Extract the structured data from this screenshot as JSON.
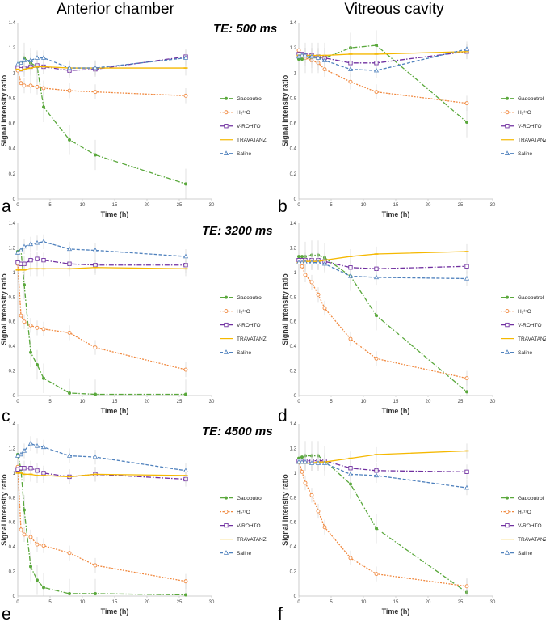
{
  "figure": {
    "column_titles": [
      "Anterior chamber",
      "Vitreous cavity"
    ],
    "te_labels": [
      "TE: 500 ms",
      "TE: 3200 ms",
      "TE: 4500 ms"
    ]
  },
  "colors": {
    "Gadobutrol": "#5aa83c",
    "H2O17": "#f0883e",
    "V-ROHTO": "#7030a0",
    "TRAVATANZ": "#f5b800",
    "Saline": "#4f81bd"
  },
  "chart_data": [
    {
      "panel": "a",
      "type": "line",
      "region": "Anterior chamber",
      "te": "TE: 500 ms",
      "xlabel": "Time (h)",
      "ylabel": "Signal intensity ratio",
      "xlim": [
        0,
        30
      ],
      "ylim": [
        0,
        1.4
      ],
      "xticks": [
        0,
        5,
        10,
        15,
        20,
        25,
        30
      ],
      "yticks": [
        0,
        0.2,
        0.4,
        0.6,
        0.8,
        1.0,
        1.2,
        1.4
      ],
      "legend": [
        "Gadobutrol",
        "H₂¹⁷O",
        "V-ROHTO",
        "TRAVATANZ",
        "Saline"
      ],
      "series": [
        {
          "name": "Gadobutrol",
          "x": [
            0,
            0.5,
            1,
            2,
            3,
            4,
            8,
            12,
            26
          ],
          "values": [
            1.05,
            1.08,
            1.12,
            1.08,
            1.05,
            0.73,
            0.47,
            0.35,
            0.12
          ]
        },
        {
          "name": "H₂¹⁷O",
          "x": [
            0,
            0.5,
            1,
            2,
            3,
            4,
            8,
            12,
            26
          ],
          "values": [
            1.02,
            0.92,
            0.9,
            0.9,
            0.89,
            0.88,
            0.86,
            0.85,
            0.82
          ]
        },
        {
          "name": "V-ROHTO",
          "x": [
            0,
            0.5,
            1,
            2,
            3,
            4,
            8,
            12,
            26
          ],
          "values": [
            1.04,
            1.03,
            1.04,
            1.05,
            1.06,
            1.05,
            1.02,
            1.03,
            1.13
          ]
        },
        {
          "name": "TRAVATANZ",
          "x": [
            0,
            0.5,
            1,
            2,
            3,
            4,
            8,
            12,
            26
          ],
          "values": [
            1.03,
            1.02,
            1.03,
            1.04,
            1.05,
            1.05,
            1.04,
            1.04,
            1.04
          ]
        },
        {
          "name": "Saline",
          "x": [
            0,
            0.5,
            1,
            2,
            3,
            4,
            8,
            12,
            26
          ],
          "values": [
            1.07,
            1.08,
            1.1,
            1.1,
            1.12,
            1.12,
            1.04,
            1.04,
            1.12
          ]
        }
      ]
    },
    {
      "panel": "b",
      "type": "line",
      "region": "Vitreous cavity",
      "te": "TE: 500 ms",
      "xlabel": "Time (h)",
      "ylabel": "Signal intensity ratio",
      "xlim": [
        0,
        30
      ],
      "ylim": [
        0,
        1.4
      ],
      "xticks": [
        0,
        5,
        10,
        15,
        20,
        25,
        30
      ],
      "yticks": [
        0,
        0.2,
        0.4,
        0.6,
        0.8,
        1.0,
        1.2,
        1.4
      ],
      "legend": [
        "Gadobutrol",
        "H₂¹⁷O",
        "V-ROHTO",
        "TRAVATANZ",
        "Saline"
      ],
      "series": [
        {
          "name": "Gadobutrol",
          "x": [
            0,
            0.5,
            1,
            2,
            3,
            4,
            8,
            12,
            26
          ],
          "values": [
            1.11,
            1.11,
            1.12,
            1.12,
            1.12,
            1.12,
            1.2,
            1.22,
            0.61
          ]
        },
        {
          "name": "H₂¹⁷O",
          "x": [
            0,
            0.5,
            1,
            2,
            3,
            4,
            8,
            12,
            26
          ],
          "values": [
            1.18,
            1.15,
            1.12,
            1.1,
            1.08,
            1.03,
            0.93,
            0.85,
            0.76
          ]
        },
        {
          "name": "V-ROHTO",
          "x": [
            0,
            0.5,
            1,
            2,
            3,
            4,
            8,
            12,
            26
          ],
          "values": [
            1.15,
            1.15,
            1.14,
            1.14,
            1.13,
            1.12,
            1.08,
            1.08,
            1.17
          ]
        },
        {
          "name": "TRAVATANZ",
          "x": [
            0,
            0.5,
            1,
            2,
            3,
            4,
            8,
            12,
            26
          ],
          "values": [
            1.14,
            1.14,
            1.14,
            1.14,
            1.14,
            1.14,
            1.15,
            1.15,
            1.17
          ]
        },
        {
          "name": "Saline",
          "x": [
            0,
            0.5,
            1,
            2,
            3,
            4,
            8,
            12,
            26
          ],
          "values": [
            1.13,
            1.14,
            1.14,
            1.13,
            1.12,
            1.1,
            1.03,
            1.02,
            1.19
          ]
        }
      ]
    },
    {
      "panel": "c",
      "type": "line",
      "region": "Anterior chamber",
      "te": "TE: 3200 ms",
      "xlabel": "Time (h)",
      "ylabel": "Signal intensity ratio",
      "xlim": [
        0,
        30
      ],
      "ylim": [
        0,
        1.4
      ],
      "xticks": [
        0,
        5,
        10,
        15,
        20,
        25,
        30
      ],
      "yticks": [
        0,
        0.2,
        0.4,
        0.6,
        0.8,
        1.0,
        1.2,
        1.4
      ],
      "legend": [
        "Gadobutrol",
        "H₂¹⁷O",
        "V-ROHTO",
        "TRAVATANZ",
        "Saline"
      ],
      "series": [
        {
          "name": "Gadobutrol",
          "x": [
            0,
            0.5,
            1,
            2,
            3,
            4,
            8,
            12,
            26
          ],
          "values": [
            1.17,
            1.18,
            0.9,
            0.35,
            0.25,
            0.14,
            0.02,
            0.01,
            0.01
          ]
        },
        {
          "name": "H₂¹⁷O",
          "x": [
            0,
            0.5,
            1,
            2,
            3,
            4,
            8,
            12,
            26
          ],
          "values": [
            1.07,
            0.65,
            0.6,
            0.57,
            0.55,
            0.54,
            0.51,
            0.39,
            0.21
          ]
        },
        {
          "name": "V-ROHTO",
          "x": [
            0,
            0.5,
            1,
            2,
            3,
            4,
            8,
            12,
            26
          ],
          "values": [
            1.08,
            1.07,
            1.07,
            1.1,
            1.11,
            1.1,
            1.07,
            1.06,
            1.06
          ]
        },
        {
          "name": "TRAVATANZ",
          "x": [
            0,
            0.5,
            1,
            2,
            3,
            4,
            8,
            12,
            26
          ],
          "values": [
            1.02,
            1.02,
            1.02,
            1.03,
            1.03,
            1.03,
            1.03,
            1.04,
            1.03
          ]
        },
        {
          "name": "Saline",
          "x": [
            0,
            0.5,
            1,
            2,
            3,
            4,
            8,
            12,
            26
          ],
          "values": [
            1.16,
            1.18,
            1.21,
            1.23,
            1.24,
            1.25,
            1.19,
            1.18,
            1.13
          ]
        }
      ]
    },
    {
      "panel": "d",
      "type": "line",
      "region": "Vitreous cavity",
      "te": "TE: 3200 ms",
      "xlabel": "Time (h)",
      "ylabel": "Signal intensity ratio",
      "xlim": [
        0,
        30
      ],
      "ylim": [
        0,
        1.4
      ],
      "xticks": [
        0,
        5,
        10,
        15,
        20,
        25,
        30
      ],
      "yticks": [
        0,
        0.2,
        0.4,
        0.6,
        0.8,
        1.0,
        1.2,
        1.4
      ],
      "legend": [
        "Gadobutrol",
        "H₂¹⁷O",
        "V-ROHTO",
        "TRAVATANZ",
        "Saline"
      ],
      "series": [
        {
          "name": "Gadobutrol",
          "x": [
            0,
            0.5,
            1,
            2,
            3,
            4,
            8,
            12,
            26
          ],
          "values": [
            1.13,
            1.13,
            1.13,
            1.14,
            1.14,
            1.12,
            0.97,
            0.65,
            0.03
          ]
        },
        {
          "name": "H₂¹⁷O",
          "x": [
            0,
            0.5,
            1,
            2,
            3,
            4,
            8,
            12,
            26
          ],
          "values": [
            1.1,
            1.05,
            0.98,
            0.92,
            0.82,
            0.71,
            0.46,
            0.3,
            0.14
          ]
        },
        {
          "name": "V-ROHTO",
          "x": [
            0,
            0.5,
            1,
            2,
            3,
            4,
            8,
            12,
            26
          ],
          "values": [
            1.1,
            1.1,
            1.1,
            1.1,
            1.1,
            1.09,
            1.04,
            1.03,
            1.05
          ]
        },
        {
          "name": "TRAVATANZ",
          "x": [
            0,
            0.5,
            1,
            2,
            3,
            4,
            8,
            12,
            26
          ],
          "values": [
            1.08,
            1.08,
            1.09,
            1.09,
            1.09,
            1.1,
            1.13,
            1.15,
            1.17
          ]
        },
        {
          "name": "Saline",
          "x": [
            0,
            0.5,
            1,
            2,
            3,
            4,
            8,
            12,
            26
          ],
          "values": [
            1.08,
            1.08,
            1.08,
            1.08,
            1.08,
            1.07,
            0.97,
            0.96,
            0.95
          ]
        }
      ]
    },
    {
      "panel": "e",
      "type": "line",
      "region": "Anterior chamber",
      "te": "TE: 4500 ms",
      "xlabel": "Time (h)",
      "ylabel": "Signal intensity ratio",
      "xlim": [
        0,
        30
      ],
      "ylim": [
        0,
        1.4
      ],
      "xticks": [
        0,
        5,
        10,
        15,
        20,
        25,
        30
      ],
      "yticks": [
        0,
        0.2,
        0.4,
        0.6,
        0.8,
        1.0,
        1.2,
        1.4
      ],
      "legend": [
        "Gadobutrol",
        "H₂¹⁷O",
        "V-ROHTO",
        "TRAVATANZ",
        "Saline"
      ],
      "series": [
        {
          "name": "Gadobutrol",
          "x": [
            0,
            0.5,
            1,
            2,
            3,
            4,
            8,
            12,
            26
          ],
          "values": [
            1.15,
            1.03,
            0.7,
            0.24,
            0.13,
            0.07,
            0.02,
            0.02,
            0.01
          ]
        },
        {
          "name": "H₂¹⁷O",
          "x": [
            0,
            0.5,
            1,
            2,
            3,
            4,
            8,
            12,
            26
          ],
          "values": [
            1.05,
            0.54,
            0.5,
            0.48,
            0.42,
            0.41,
            0.35,
            0.25,
            0.12
          ]
        },
        {
          "name": "V-ROHTO",
          "x": [
            0,
            0.5,
            1,
            2,
            3,
            4,
            8,
            12,
            26
          ],
          "values": [
            1.03,
            1.04,
            1.04,
            1.04,
            1.02,
            1.0,
            0.97,
            0.99,
            0.95
          ]
        },
        {
          "name": "TRAVATANZ",
          "x": [
            0,
            0.5,
            1,
            2,
            3,
            4,
            8,
            12,
            26
          ],
          "values": [
            1.0,
            1.0,
            0.99,
            0.99,
            0.98,
            0.98,
            0.97,
            0.99,
            0.98
          ]
        },
        {
          "name": "Saline",
          "x": [
            0,
            0.5,
            1,
            2,
            3,
            4,
            8,
            12,
            26
          ],
          "values": [
            1.14,
            1.15,
            1.18,
            1.24,
            1.22,
            1.21,
            1.14,
            1.13,
            1.02
          ]
        }
      ]
    },
    {
      "panel": "f",
      "type": "line",
      "region": "Vitreous cavity",
      "te": "TE: 4500 ms",
      "xlabel": "Time (h)",
      "ylabel": "Signal intensity ratio",
      "xlim": [
        0,
        30
      ],
      "ylim": [
        0,
        1.4
      ],
      "xticks": [
        0,
        5,
        10,
        15,
        20,
        25,
        30
      ],
      "yticks": [
        0,
        0.2,
        0.4,
        0.6,
        0.8,
        1.0,
        1.2,
        1.4
      ],
      "legend": [
        "Gadobutrol",
        "H₂¹⁷O",
        "V-ROHTO",
        "TRAVATANZ",
        "Saline"
      ],
      "series": [
        {
          "name": "Gadobutrol",
          "x": [
            0,
            0.5,
            1,
            2,
            3,
            4,
            8,
            12,
            26
          ],
          "values": [
            1.12,
            1.13,
            1.14,
            1.14,
            1.14,
            1.1,
            0.91,
            0.55,
            0.03
          ]
        },
        {
          "name": "H₂¹⁷O",
          "x": [
            0,
            0.5,
            1,
            2,
            3,
            4,
            8,
            12,
            26
          ],
          "values": [
            1.1,
            1.01,
            0.92,
            0.82,
            0.69,
            0.56,
            0.31,
            0.18,
            0.08
          ]
        },
        {
          "name": "V-ROHTO",
          "x": [
            0,
            0.5,
            1,
            2,
            3,
            4,
            8,
            12,
            26
          ],
          "values": [
            1.1,
            1.1,
            1.1,
            1.1,
            1.1,
            1.1,
            1.04,
            1.02,
            1.01
          ]
        },
        {
          "name": "TRAVATANZ",
          "x": [
            0,
            0.5,
            1,
            2,
            3,
            4,
            8,
            12,
            26
          ],
          "values": [
            1.08,
            1.08,
            1.08,
            1.08,
            1.09,
            1.09,
            1.12,
            1.15,
            1.18
          ]
        },
        {
          "name": "Saline",
          "x": [
            0,
            0.5,
            1,
            2,
            3,
            4,
            8,
            12,
            26
          ],
          "values": [
            1.09,
            1.09,
            1.09,
            1.08,
            1.08,
            1.08,
            0.99,
            0.98,
            0.88
          ]
        }
      ]
    }
  ]
}
